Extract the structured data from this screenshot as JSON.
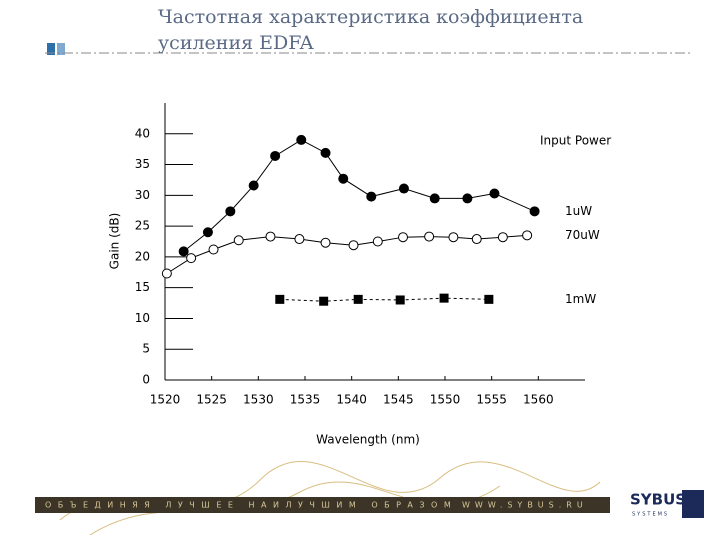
{
  "chart_data": {
    "type": "line",
    "title": "Частотная характеристика коэффициента усиления EDFA",
    "x_label": "Wavelength (nm)",
    "y_label": "Gain (dB)",
    "legend_title": "Input Power",
    "xlim": [
      1520,
      1565
    ],
    "xticks": [
      1520,
      1525,
      1530,
      1535,
      1540,
      1545,
      1550,
      1555,
      1560
    ],
    "ylim": [
      0,
      45
    ],
    "yticks": [
      0,
      5,
      10,
      15,
      20,
      25,
      30,
      35,
      40
    ],
    "series": [
      {
        "name": "1uW",
        "color": "#000000",
        "marker": "filled-circle",
        "linestyle": "solid",
        "x": [
          1522.0,
          1524.6,
          1527.0,
          1529.5,
          1531.8,
          1534.6,
          1537.2,
          1539.1,
          1542.1,
          1545.6,
          1548.9,
          1552.4,
          1555.3,
          1559.6
        ],
        "values": [
          20.9,
          24.0,
          27.4,
          31.6,
          36.4,
          39.0,
          36.9,
          32.7,
          29.8,
          31.1,
          29.5,
          29.5,
          30.3,
          27.4
        ]
      },
      {
        "name": "70uW",
        "color": "#000000",
        "marker": "open-circle",
        "linestyle": "solid",
        "x": [
          1520.2,
          1522.8,
          1525.2,
          1527.9,
          1531.3,
          1534.4,
          1537.2,
          1540.2,
          1542.8,
          1545.5,
          1548.3,
          1550.9,
          1553.4,
          1556.2,
          1558.8
        ],
        "values": [
          17.3,
          19.8,
          21.2,
          22.7,
          23.3,
          22.9,
          22.3,
          21.9,
          22.5,
          23.2,
          23.3,
          23.2,
          22.9,
          23.2,
          23.5
        ]
      },
      {
        "name": "1mW",
        "color": "#000000",
        "marker": "square",
        "linestyle": "dashed",
        "x": [
          1532.3,
          1537.0,
          1540.7,
          1545.2,
          1549.9,
          1554.7
        ],
        "values": [
          13.1,
          12.8,
          13.1,
          13.0,
          13.3,
          13.1
        ]
      }
    ]
  },
  "footer": {
    "slogan": "ОБЪЕДИНЯЯ ЛУЧШЕЕ НАИЛУЧШИМ ОБРАЗОМ",
    "url": "WWW.SYBUS.RU",
    "logo": "SYBUS",
    "logo_sub": "SYSTEMS"
  }
}
